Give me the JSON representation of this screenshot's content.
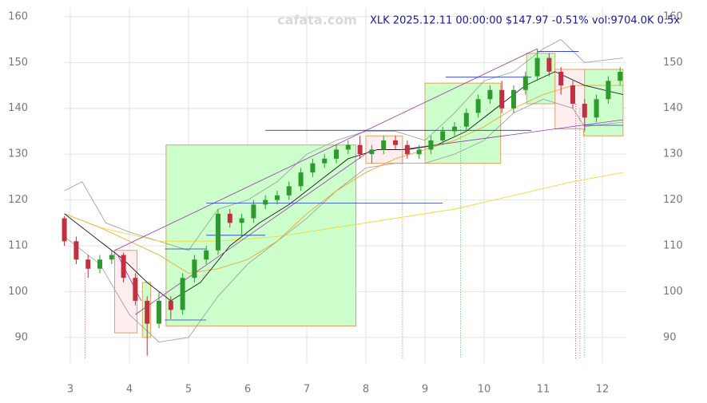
{
  "chart_data": {
    "type": "candlestick",
    "watermark": "cafata.com",
    "header": "XLK 2025.12.11 00:00:00 $147.97 -0.51% vol:9704.0K 0.5x",
    "xlim": [
      2.9,
      12.4
    ],
    "ylim": [
      84.4,
      161.9
    ],
    "xticks": [
      3,
      4,
      5,
      6,
      7,
      8,
      9,
      10,
      11,
      12
    ],
    "yticks": [
      90,
      100,
      110,
      120,
      130,
      140,
      150,
      160
    ],
    "grid": true,
    "up_color": "#2e9a2e",
    "down_color": "#c0303e",
    "x": [
      2.9,
      3.1,
      3.3,
      3.5,
      3.7,
      3.9,
      4.1,
      4.3,
      4.5,
      4.7,
      4.9,
      5.1,
      5.3,
      5.5,
      5.7,
      5.9,
      6.1,
      6.3,
      6.5,
      6.7,
      6.9,
      7.1,
      7.3,
      7.5,
      7.7,
      7.9,
      8.1,
      8.3,
      8.5,
      8.7,
      8.9,
      9.1,
      9.3,
      9.5,
      9.7,
      9.9,
      10.1,
      10.3,
      10.5,
      10.7,
      10.9,
      11.1,
      11.3,
      11.5,
      11.7,
      11.9,
      12.1,
      12.3
    ],
    "open": [
      116,
      111,
      107,
      105,
      107,
      108,
      103,
      98,
      93,
      98,
      96,
      103,
      107,
      109,
      117,
      115,
      116,
      119,
      120,
      121,
      123,
      126,
      128,
      129,
      131,
      132,
      130,
      131,
      133,
      132,
      130,
      131,
      133,
      135,
      136,
      139,
      142,
      144,
      140,
      144,
      147,
      151,
      148,
      145,
      141,
      138,
      142,
      146
    ],
    "high": [
      116.5,
      112,
      108,
      108,
      109,
      108.5,
      104,
      99,
      100,
      99,
      104,
      108,
      110,
      118,
      118,
      117,
      120,
      121,
      122,
      124,
      127,
      129,
      130,
      132,
      133,
      134,
      132,
      134,
      134,
      133,
      132,
      134,
      136,
      137,
      140,
      143,
      145,
      146,
      145,
      148,
      153,
      152,
      149,
      146,
      142,
      143,
      147,
      149
    ],
    "low": [
      110,
      106,
      103,
      104,
      106,
      102,
      97,
      86,
      92,
      94,
      95,
      102,
      106,
      108,
      114,
      112,
      115,
      118,
      119,
      120,
      122,
      125,
      127,
      128,
      130,
      129,
      128,
      130,
      131,
      129,
      129,
      130,
      132,
      134,
      135,
      138,
      141,
      139,
      139,
      143,
      146,
      147,
      143,
      140,
      135,
      137,
      141,
      145
    ],
    "close": [
      111,
      107,
      105,
      107,
      108,
      103,
      98,
      93,
      98,
      96,
      103,
      107,
      109,
      117,
      115,
      116,
      119,
      120,
      121,
      123,
      126,
      128,
      129,
      131,
      132,
      130,
      131,
      133,
      132,
      130,
      131,
      133,
      135,
      136,
      139,
      142,
      144,
      140,
      144,
      147,
      151,
      148,
      145,
      141,
      138,
      142,
      146,
      147.97
    ],
    "lines": [
      {
        "color": "#999999",
        "x": [
          2.9,
          3.2,
          3.6,
          4.0,
          4.5,
          5.0,
          5.5,
          6.0,
          6.5,
          7.0,
          7.5,
          8.0,
          8.5,
          9.0,
          9.5,
          10.0,
          10.5,
          11.0,
          11.3,
          11.7,
          12.35
        ],
        "values": [
          122,
          124,
          115,
          113,
          111,
          109,
          118,
          120,
          124,
          130,
          133,
          135,
          135,
          133,
          139,
          146,
          148,
          153,
          155,
          150,
          151
        ]
      },
      {
        "color": "#999999",
        "x": [
          2.9,
          3.5,
          4.0,
          4.5,
          5.0,
          5.5,
          6.0,
          6.5,
          7.0,
          7.5,
          8.0,
          8.5,
          9.0,
          9.5,
          10.0,
          10.5,
          11.0,
          11.5,
          11.7,
          12.35
        ],
        "values": [
          112,
          106,
          95,
          89,
          90,
          99,
          106,
          111,
          116,
          122,
          127,
          128,
          128,
          130,
          133,
          139,
          142,
          140,
          136,
          137
        ]
      },
      {
        "color": "#f5d020",
        "x": [
          2.9,
          3.5,
          4.5,
          5.5,
          6.5,
          7.5,
          8.5,
          9.5,
          10.5,
          11.5,
          12.35
        ],
        "values": [
          117,
          114,
          111,
          111,
          112,
          114,
          116,
          118,
          121,
          124,
          126
        ]
      },
      {
        "color": "#f0a020",
        "x": [
          2.9,
          3.5,
          4.0,
          4.5,
          5.0,
          5.5,
          6.0,
          6.5,
          7.0,
          7.5,
          8.0,
          8.5,
          9.0,
          9.5,
          10.0,
          10.5,
          11.0,
          11.5,
          12.35
        ],
        "values": [
          117,
          114,
          111,
          108,
          104,
          105,
          107,
          111,
          117,
          122,
          126,
          129,
          131,
          133,
          136,
          140,
          143,
          145,
          145
        ]
      },
      {
        "color": "#000000",
        "x": [
          2.9,
          3.4,
          3.9,
          4.3,
          4.7,
          5.2,
          5.7,
          6.2,
          6.7,
          7.2,
          7.7,
          8.2,
          8.7,
          9.2,
          9.7,
          10.2,
          10.7,
          11.2,
          11.7,
          12.35
        ],
        "values": [
          117,
          112,
          107,
          102,
          98,
          102,
          110,
          115,
          119,
          124,
          129,
          131,
          131,
          132,
          135,
          140,
          145,
          148,
          145,
          143
        ]
      }
    ],
    "boxes": [
      {
        "color": "#ccffcc",
        "edge": "#e0a060",
        "x": [
          4.62,
          7.83
        ],
        "y": [
          92.5,
          132
        ]
      },
      {
        "color": "#ccffcc",
        "edge": "#e0a060",
        "x": [
          9.0,
          10.28
        ],
        "y": [
          128,
          145.5
        ]
      },
      {
        "color": "#ccffcc",
        "edge": "#e0a060",
        "x": [
          10.72,
          11.2
        ],
        "y": [
          141,
          152
        ]
      },
      {
        "color": "#ccffcc",
        "edge": "#e0a060",
        "x": [
          11.68,
          12.35
        ],
        "y": [
          134,
          148.5
        ]
      },
      {
        "color": "#ccffcc",
        "edge": "#e0a060",
        "x": [
          4.22,
          4.36
        ],
        "y": [
          90,
          102
        ]
      },
      {
        "color": "#ffeef0",
        "edge": "#e0a060",
        "x": [
          3.75,
          4.13
        ],
        "y": [
          91,
          109
        ]
      },
      {
        "color": "#ffeef0",
        "edge": "#e0a060",
        "x": [
          8.0,
          8.62
        ],
        "y": [
          128,
          134
        ]
      },
      {
        "color": "#ffeef0",
        "edge": "#e0a060",
        "x": [
          11.2,
          11.7
        ],
        "y": [
          135.5,
          148.5
        ]
      }
    ],
    "segments": [
      {
        "color": "#9933aa",
        "x": [
          3.75,
          10.9
        ],
        "y": [
          109,
          153
        ]
      },
      {
        "color": "#9933aa",
        "x": [
          4.1,
          8.1
        ],
        "y": [
          95,
          131
        ]
      },
      {
        "color": "#9933aa",
        "x": [
          8.6,
          12.35
        ],
        "y": [
          131,
          137.5
        ]
      },
      {
        "color": "#9933aa",
        "x": [
          3.8,
          4.2
        ],
        "y": [
          108,
          98
        ]
      },
      {
        "color": "#2233cc",
        "x": [
          6.3,
          10.8
        ],
        "y": [
          135.2,
          135.2
        ]
      },
      {
        "color": "#2233cc",
        "x": [
          5.3,
          9.3
        ],
        "y": [
          119.3,
          119.3
        ]
      },
      {
        "color": "#2233cc",
        "x": [
          4.6,
          5.3
        ],
        "y": [
          93.8,
          93.8
        ]
      },
      {
        "color": "#2233cc",
        "x": [
          4.6,
          5.3
        ],
        "y": [
          109.3,
          109.3
        ]
      },
      {
        "color": "#2233cc",
        "x": [
          5.3,
          6.3
        ],
        "y": [
          112.3,
          112.3
        ]
      },
      {
        "color": "#2233cc",
        "x": [
          9.35,
          10.8
        ],
        "y": [
          146.8,
          146.8
        ]
      },
      {
        "color": "#2233cc",
        "x": [
          10.9,
          11.6
        ],
        "y": [
          152.4,
          152.4
        ]
      },
      {
        "color": "#2233cc",
        "x": [
          11.7,
          12.35
        ],
        "y": [
          136.3,
          136.3
        ]
      }
    ],
    "vlines": [
      {
        "color": "#cc3344",
        "x": 3.25,
        "y": 104
      },
      {
        "color": "#cc3344",
        "x": 8.62,
        "y": 131
      },
      {
        "color": "#33aa33",
        "x": 9.6,
        "y": 136
      },
      {
        "color": "#cc3344",
        "x": 11.55,
        "y": 141
      },
      {
        "color": "#cc3344",
        "x": 11.62,
        "y": 140
      },
      {
        "color": "#33aa33",
        "x": 11.7,
        "y": 138
      }
    ]
  }
}
